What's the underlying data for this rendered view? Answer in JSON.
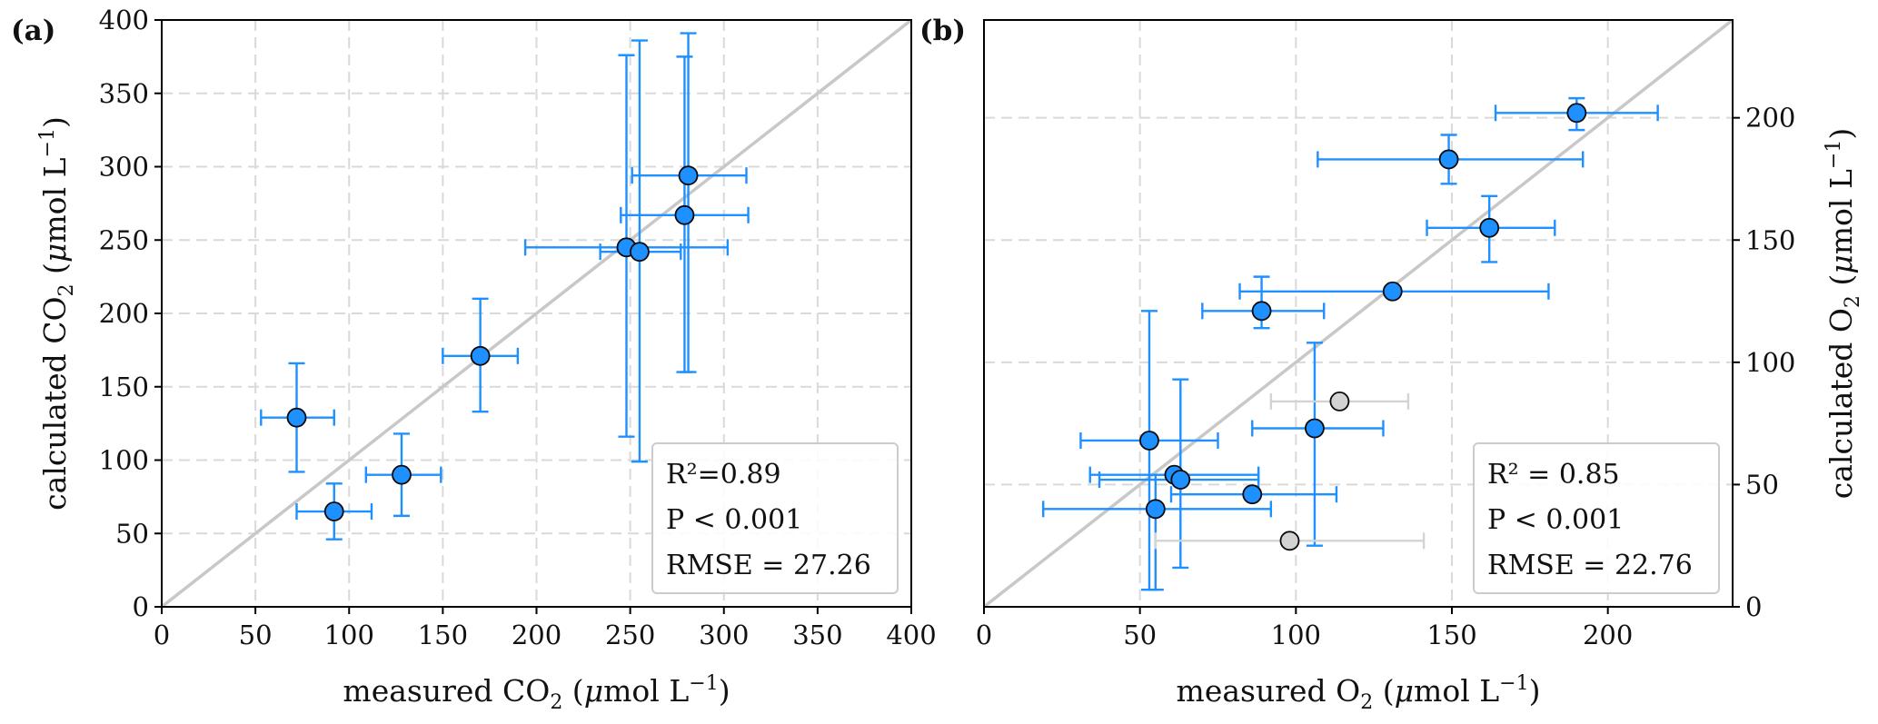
{
  "chart_data": [
    {
      "type": "scatter",
      "panel_label": "(a)",
      "xlabel": {
        "prefix": "measured CO",
        "sub": "2",
        "unit_open": " (",
        "mu": "μ",
        "unit_mid": "mol L",
        "sup": "−1",
        "unit_close": ")"
      },
      "ylabel": {
        "prefix": "calculated CO",
        "sub": "2",
        "unit_open": " (",
        "mu": "μ",
        "unit_mid": "mol L",
        "sup": "−1",
        "unit_close": ")"
      },
      "xlim": [
        0,
        400
      ],
      "ylim": [
        0,
        400
      ],
      "xticks": [
        0,
        50,
        100,
        150,
        200,
        250,
        300,
        350,
        400
      ],
      "yticks": [
        0,
        50,
        100,
        150,
        200,
        250,
        300,
        350,
        400
      ],
      "grid": true,
      "one_to_one_line": true,
      "series": [
        {
          "name": "samples",
          "color": "#1e90ff",
          "points": [
            {
              "x": 72,
              "y": 129,
              "xerr": [
                53,
                92
              ],
              "yerr": [
                92,
                166
              ]
            },
            {
              "x": 92,
              "y": 65,
              "xerr": [
                72,
                112
              ],
              "yerr": [
                46,
                84
              ]
            },
            {
              "x": 128,
              "y": 90,
              "xerr": [
                109,
                149
              ],
              "yerr": [
                62,
                118
              ]
            },
            {
              "x": 170,
              "y": 171,
              "xerr": [
                150,
                190
              ],
              "yerr": [
                133,
                210
              ]
            },
            {
              "x": 248,
              "y": 245,
              "xerr": [
                194,
                302
              ],
              "yerr": [
                116,
                376
              ]
            },
            {
              "x": 255,
              "y": 242,
              "xerr": [
                234,
                277
              ],
              "yerr": [
                99,
                386
              ]
            },
            {
              "x": 279,
              "y": 267,
              "xerr": [
                245,
                313
              ],
              "yerr": [
                160,
                375
              ]
            },
            {
              "x": 281,
              "y": 294,
              "xerr": [
                251,
                312
              ],
              "yerr": [
                160,
                391
              ]
            }
          ]
        }
      ],
      "stats": {
        "r2": "R²=0.89",
        "p": "P < 0.001",
        "rmse": "RMSE = 27.26"
      }
    },
    {
      "type": "scatter",
      "panel_label": "(b)",
      "xlabel": {
        "prefix": "measured O",
        "sub": "2",
        "unit_open": " (",
        "mu": "μ",
        "unit_mid": "mol L",
        "sup": "−1",
        "unit_close": ")"
      },
      "ylabel": {
        "prefix": "calculated O",
        "sub": "2",
        "unit_open": " (",
        "mu": "μ",
        "unit_mid": "mol L",
        "sup": "−1",
        "unit_close": ")"
      },
      "xlim": [
        0,
        240
      ],
      "ylim": [
        0,
        240
      ],
      "xticks": [
        0,
        50,
        100,
        150,
        200
      ],
      "yticks": [
        0,
        50,
        100,
        150,
        200
      ],
      "y_axis_side": "right",
      "grid": true,
      "one_to_one_line": true,
      "series": [
        {
          "name": "samples",
          "color": "#1e90ff",
          "points": [
            {
              "x": 190,
              "y": 202,
              "xerr": [
                164,
                216
              ],
              "yerr": [
                195,
                208
              ]
            },
            {
              "x": 149,
              "y": 183,
              "xerr": [
                107,
                192
              ],
              "yerr": [
                173,
                193
              ]
            },
            {
              "x": 162,
              "y": 155,
              "xerr": [
                142,
                183
              ],
              "yerr": [
                141,
                168
              ]
            },
            {
              "x": 131,
              "y": 129,
              "xerr": [
                82,
                181
              ],
              "yerr": [
                129,
                129
              ]
            },
            {
              "x": 89,
              "y": 121,
              "xerr": [
                70,
                109
              ],
              "yerr": [
                114,
                135
              ]
            },
            {
              "x": 106,
              "y": 73,
              "xerr": [
                86,
                128
              ],
              "yerr": [
                25,
                108
              ]
            },
            {
              "x": 53,
              "y": 68,
              "xerr": [
                31,
                75
              ],
              "yerr": [
                7,
                121
              ]
            },
            {
              "x": 61,
              "y": 54,
              "xerr": [
                34,
                88
              ],
              "yerr": [
                54,
                54
              ]
            },
            {
              "x": 63,
              "y": 52,
              "xerr": [
                37,
                88
              ],
              "yerr": [
                16,
                93
              ]
            },
            {
              "x": 86,
              "y": 46,
              "xerr": [
                60,
                113
              ],
              "yerr": [
                46,
                46
              ]
            },
            {
              "x": 55,
              "y": 40,
              "xerr": [
                19,
                92
              ],
              "yerr": [
                7,
                54
              ]
            }
          ]
        },
        {
          "name": "excluded",
          "color": "#d3d3d3",
          "points": [
            {
              "x": 114,
              "y": 84,
              "xerr": [
                92,
                136
              ],
              "yerr": [
                84,
                84
              ]
            },
            {
              "x": 98,
              "y": 27,
              "xerr": [
                55,
                141
              ],
              "yerr": [
                27,
                27
              ]
            }
          ]
        }
      ],
      "stats": {
        "r2": "R² = 0.85",
        "p": "P < 0.001",
        "rmse": "RMSE = 22.76"
      }
    }
  ]
}
